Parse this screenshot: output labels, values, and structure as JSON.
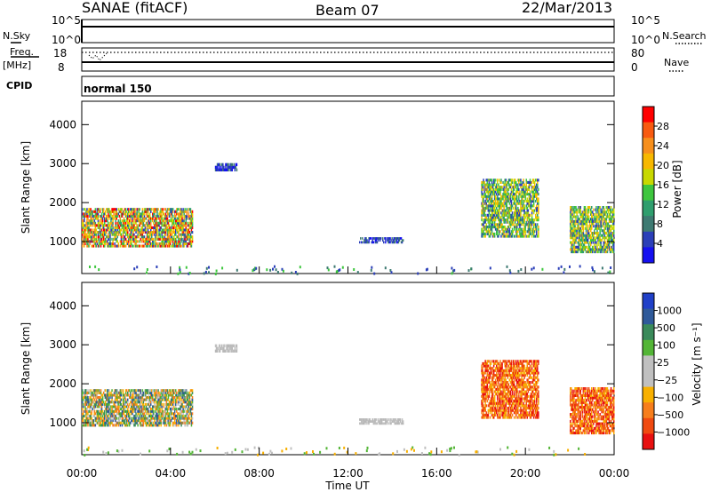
{
  "header": {
    "title": "SANAE (fitACF)",
    "beam": "Beam 07",
    "date": "22/Mar/2013"
  },
  "status_panels": {
    "nsky_label": "N.Sky",
    "nsearch_label": "N.Search",
    "noise_ticks_left": [
      "10^5",
      "10^0"
    ],
    "noise_ticks_right": [
      "10^5",
      "10^0"
    ],
    "freq_label": "Freq.",
    "freq_unit": "[MHz]",
    "freq_ticks": [
      "18",
      "8"
    ],
    "nave_label": "Nave",
    "nave_ticks": [
      "80",
      "0"
    ],
    "cpid_label": "CPID",
    "cpid_text": "normal 150"
  },
  "chart_data": [
    {
      "type": "heatmap",
      "quantity": "Power",
      "ylabel": "Slant Range [km]",
      "yticks": [
        1000,
        2000,
        3000,
        4000
      ],
      "ylim": [
        180,
        4600
      ],
      "xlim": [
        0,
        24
      ],
      "colorbar": {
        "label": "Power [dB]",
        "ticks": [
          "28",
          "24",
          "20",
          "16",
          "12",
          "8",
          "4"
        ],
        "colors": [
          "#ff0000",
          "#f85a10",
          "#f78f1c",
          "#f7b800",
          "#c8d800",
          "#3ec63e",
          "#2f9e6e",
          "#3e7a72",
          "#2b3fb8",
          "#1510f0"
        ]
      },
      "echo_regions": [
        {
          "t0": 0.0,
          "t1": 5.0,
          "r_lo": 850,
          "r_hi": 1850,
          "level": "high"
        },
        {
          "t0": 6.0,
          "t1": 7.0,
          "r_lo": 2800,
          "r_hi": 3000,
          "level": "low"
        },
        {
          "t0": 12.5,
          "t1": 14.5,
          "r_lo": 950,
          "r_hi": 1100,
          "level": "low"
        },
        {
          "t0": 18.0,
          "t1": 20.6,
          "r_lo": 1100,
          "r_hi": 2600,
          "level": "medium"
        },
        {
          "t0": 22.0,
          "t1": 24.0,
          "r_lo": 700,
          "r_hi": 1900,
          "level": "medium"
        }
      ]
    },
    {
      "type": "heatmap",
      "quantity": "Velocity",
      "ylabel": "Slant Range [km]",
      "yticks": [
        1000,
        2000,
        3000,
        4000
      ],
      "ylim": [
        180,
        4600
      ],
      "xlim": [
        0,
        24
      ],
      "xticks": [
        "00:00",
        "04:00",
        "08:00",
        "12:00",
        "16:00",
        "20:00",
        "00:00"
      ],
      "xlabel": "Time UT",
      "colorbar": {
        "label": "Velocity [m s⁻¹]",
        "ticks": [
          "1000",
          "500",
          "100",
          "25",
          "−25",
          "−100",
          "−500",
          "−1000"
        ],
        "colors": [
          "#2040c8",
          "#2f5a9a",
          "#3a8a5a",
          "#53b536",
          "#c0c0c0",
          "#c0c0c0",
          "#f8b000",
          "#f77e1c",
          "#f04a10",
          "#e81010"
        ]
      },
      "echo_regions": [
        {
          "t0": 0.0,
          "t1": 5.0,
          "r_lo": 900,
          "r_hi": 1850,
          "level": "mixed"
        },
        {
          "t0": 6.0,
          "t1": 7.0,
          "r_lo": 2800,
          "r_hi": 3000,
          "level": "ground"
        },
        {
          "t0": 12.5,
          "t1": 14.5,
          "r_lo": 950,
          "r_hi": 1100,
          "level": "ground"
        },
        {
          "t0": 18.0,
          "t1": 20.6,
          "r_lo": 1100,
          "r_hi": 2600,
          "level": "away"
        },
        {
          "t0": 22.0,
          "t1": 24.0,
          "r_lo": 700,
          "r_hi": 1900,
          "level": "away"
        }
      ]
    }
  ]
}
